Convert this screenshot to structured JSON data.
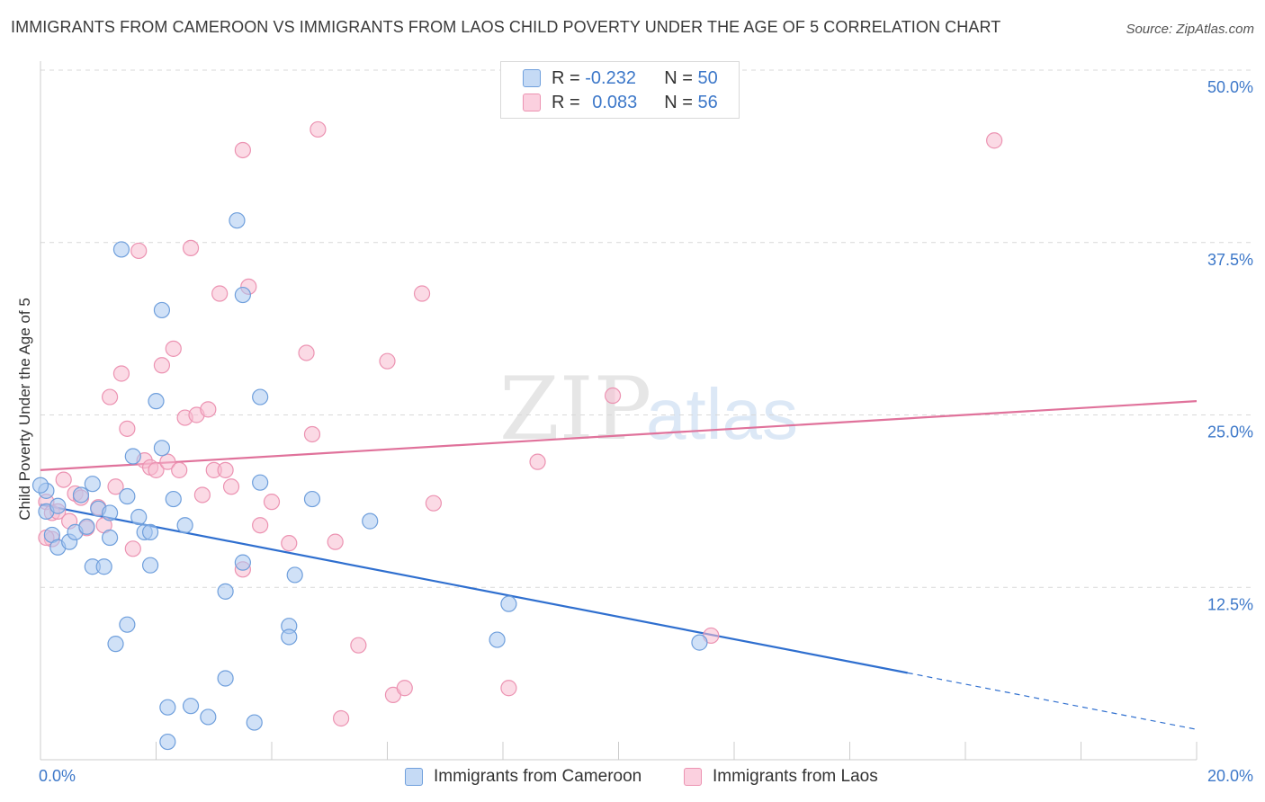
{
  "title": "IMMIGRANTS FROM CAMEROON VS IMMIGRANTS FROM LAOS CHILD POVERTY UNDER THE AGE OF 5 CORRELATION CHART",
  "source": "Source: ZipAtlas.com",
  "watermark": {
    "zip": "ZIP",
    "atlas": "atlas"
  },
  "legend": {
    "cameroon": {
      "r_label": "R =",
      "r_value": "-0.232",
      "n_label": "N =",
      "n_value": "50"
    },
    "laos": {
      "r_label": "R =",
      "r_value": "0.083",
      "n_label": "N =",
      "n_value": "56"
    }
  },
  "colors": {
    "cameroon_fill": "#aac8f0",
    "cameroon_stroke": "#6f9fdc",
    "cameroon_line": "#2f6fcf",
    "laos_fill": "#f7bcd0",
    "laos_stroke": "#ec93b2",
    "laos_line": "#e0729b",
    "axis_text": "#3d78c9",
    "grid": "#d9d9d9"
  },
  "chart_data": {
    "type": "scatter",
    "title": "IMMIGRANTS FROM CAMEROON VS IMMIGRANTS FROM LAOS CHILD POVERTY UNDER THE AGE OF 5 CORRELATION CHART",
    "xlabel": "",
    "ylabel": "Child Poverty Under the Age of 5",
    "xlim": [
      0,
      20
    ],
    "ylim": [
      0,
      50
    ],
    "x_ticks": [
      "0.0%",
      "20.0%"
    ],
    "y_ticks": [
      {
        "value": 50,
        "label": "50.0%"
      },
      {
        "value": 37.5,
        "label": "37.5%"
      },
      {
        "value": 25,
        "label": "25.0%"
      },
      {
        "value": 12.5,
        "label": "12.5%"
      }
    ],
    "grid": true,
    "legend_position": "top-center",
    "series": [
      {
        "name": "Immigrants from Cameroon",
        "color": "#aac8f0",
        "points": [
          [
            0.1,
            19.5
          ],
          [
            0.1,
            18.0
          ],
          [
            0.3,
            18.4
          ],
          [
            0.2,
            16.3
          ],
          [
            0.3,
            15.4
          ],
          [
            0.5,
            15.8
          ],
          [
            0.6,
            16.5
          ],
          [
            0.7,
            19.2
          ],
          [
            0.8,
            16.9
          ],
          [
            0.9,
            14.0
          ],
          [
            0.9,
            20.0
          ],
          [
            1.0,
            18.2
          ],
          [
            1.1,
            14.0
          ],
          [
            1.2,
            17.9
          ],
          [
            1.2,
            16.1
          ],
          [
            1.3,
            8.4
          ],
          [
            1.4,
            37.0
          ],
          [
            1.5,
            9.8
          ],
          [
            1.5,
            19.1
          ],
          [
            1.6,
            22.0
          ],
          [
            1.7,
            17.6
          ],
          [
            1.8,
            16.5
          ],
          [
            1.9,
            16.5
          ],
          [
            1.9,
            14.1
          ],
          [
            2.0,
            26.0
          ],
          [
            2.1,
            22.6
          ],
          [
            2.1,
            32.6
          ],
          [
            2.2,
            3.8
          ],
          [
            2.2,
            1.3
          ],
          [
            2.3,
            18.9
          ],
          [
            2.5,
            17.0
          ],
          [
            2.6,
            3.9
          ],
          [
            2.9,
            3.1
          ],
          [
            3.2,
            5.9
          ],
          [
            3.2,
            12.2
          ],
          [
            3.4,
            39.1
          ],
          [
            3.5,
            14.3
          ],
          [
            3.5,
            33.7
          ],
          [
            3.7,
            2.7
          ],
          [
            3.8,
            20.1
          ],
          [
            3.8,
            26.3
          ],
          [
            4.3,
            9.7
          ],
          [
            4.3,
            8.9
          ],
          [
            4.4,
            13.4
          ],
          [
            4.7,
            18.9
          ],
          [
            5.7,
            17.3
          ],
          [
            7.9,
            8.7
          ],
          [
            8.1,
            11.3
          ],
          [
            11.4,
            8.5
          ],
          [
            0.0,
            19.9
          ]
        ]
      },
      {
        "name": "Immigrants from Laos",
        "color": "#f7bcd0",
        "points": [
          [
            0.1,
            18.7
          ],
          [
            0.2,
            16.0
          ],
          [
            0.1,
            16.1
          ],
          [
            0.2,
            17.9
          ],
          [
            0.3,
            18.0
          ],
          [
            0.4,
            20.3
          ],
          [
            0.5,
            17.3
          ],
          [
            0.6,
            19.3
          ],
          [
            0.7,
            19.0
          ],
          [
            0.8,
            16.8
          ],
          [
            1.0,
            18.3
          ],
          [
            1.1,
            17.0
          ],
          [
            1.2,
            26.3
          ],
          [
            1.3,
            19.8
          ],
          [
            1.4,
            28.0
          ],
          [
            1.5,
            24.0
          ],
          [
            1.6,
            15.3
          ],
          [
            1.7,
            36.9
          ],
          [
            1.8,
            21.7
          ],
          [
            1.9,
            21.2
          ],
          [
            2.0,
            21.0
          ],
          [
            2.1,
            28.6
          ],
          [
            2.2,
            21.6
          ],
          [
            2.3,
            29.8
          ],
          [
            2.4,
            21.0
          ],
          [
            2.5,
            24.8
          ],
          [
            2.6,
            37.1
          ],
          [
            2.7,
            25.0
          ],
          [
            2.8,
            19.2
          ],
          [
            2.9,
            25.4
          ],
          [
            3.0,
            21.0
          ],
          [
            3.1,
            33.8
          ],
          [
            3.2,
            21.0
          ],
          [
            3.3,
            19.8
          ],
          [
            3.5,
            44.2
          ],
          [
            3.5,
            13.8
          ],
          [
            3.6,
            34.3
          ],
          [
            3.8,
            17.0
          ],
          [
            4.0,
            18.7
          ],
          [
            4.3,
            15.7
          ],
          [
            4.6,
            29.5
          ],
          [
            4.7,
            23.6
          ],
          [
            4.8,
            45.7
          ],
          [
            5.1,
            15.8
          ],
          [
            5.2,
            3.0
          ],
          [
            5.5,
            8.3
          ],
          [
            6.0,
            28.9
          ],
          [
            6.1,
            4.7
          ],
          [
            6.3,
            5.2
          ],
          [
            6.6,
            33.8
          ],
          [
            6.8,
            18.6
          ],
          [
            8.1,
            5.2
          ],
          [
            8.6,
            21.6
          ],
          [
            9.9,
            26.4
          ],
          [
            11.6,
            9.0
          ],
          [
            16.5,
            44.9
          ]
        ]
      }
    ],
    "trendlines": [
      {
        "series": "Immigrants from Cameroon",
        "from": [
          0,
          18.5
        ],
        "to": [
          15.0,
          6.3
        ],
        "dashed_to": [
          20.0,
          2.2
        ]
      },
      {
        "series": "Immigrants from Laos",
        "from": [
          0,
          21.0
        ],
        "to": [
          20.0,
          26.0
        ]
      }
    ]
  }
}
